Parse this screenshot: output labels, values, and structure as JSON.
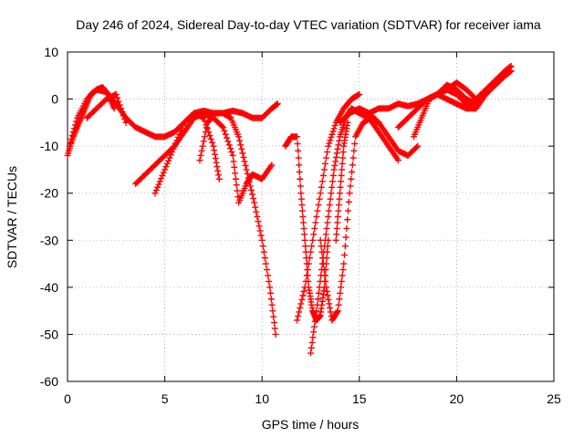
{
  "chart_data": {
    "type": "scatter",
    "title": "Day 246 of 2024, Sidereal Day-to-day VTEC variation (SDTVAR) for receiver iama",
    "xlabel": "GPS time / hours",
    "ylabel": "SDTVAR / TECUs",
    "xlim": [
      0,
      25
    ],
    "ylim": [
      -60,
      10
    ],
    "xticks": [
      0,
      5,
      10,
      15,
      20,
      25
    ],
    "yticks": [
      10,
      0,
      -10,
      -20,
      -30,
      -40,
      -50,
      -60
    ],
    "xtick_labels": [
      "0",
      "5",
      "10",
      "15",
      "20",
      "25"
    ],
    "ytick_labels": [
      "10",
      "0",
      "-10",
      "-20",
      "-30",
      "-40",
      "-50",
      "-60"
    ],
    "grid": true,
    "marker": "+",
    "color": "#ff0000",
    "series": [
      {
        "name": "track-1",
        "x": [
          0.0,
          0.3,
          0.6,
          0.9,
          1.2,
          1.5,
          1.8,
          2.1,
          2.4
        ],
        "y": [
          -12,
          -8,
          -5,
          -2,
          1,
          2,
          2.5,
          1,
          -2
        ]
      },
      {
        "name": "track-2",
        "x": [
          0.1,
          0.5,
          1.0,
          1.5,
          2.0,
          2.5,
          3.0,
          3.5,
          4.0,
          4.5,
          5.0,
          5.5,
          6.0,
          6.5,
          7.0,
          7.5,
          8.0,
          8.5,
          9.0,
          9.5,
          10.0,
          10.5,
          10.8
        ],
        "y": [
          -10,
          -4,
          0,
          2,
          1.5,
          -1,
          -4,
          -6,
          -7,
          -8,
          -8,
          -7,
          -5,
          -3,
          -2.5,
          -3,
          -3,
          -2.5,
          -3,
          -4,
          -4,
          -2,
          -1
        ]
      },
      {
        "name": "track-3",
        "x": [
          1.0,
          1.5,
          2.0,
          2.5,
          3.0
        ],
        "y": [
          -4,
          -2,
          0,
          1,
          -5
        ]
      },
      {
        "name": "track-4",
        "x": [
          3.5,
          4.0,
          4.5,
          5.0,
          5.5,
          6.0,
          6.5,
          7.0,
          7.5,
          8.0,
          8.5,
          8.8,
          9.2,
          9.5,
          10.0,
          10.5
        ],
        "y": [
          -18,
          -16,
          -14,
          -12,
          -10,
          -7,
          -4,
          -3,
          -4,
          -6,
          -12,
          -22,
          -18,
          -16,
          -17,
          -14
        ]
      },
      {
        "name": "track-5",
        "x": [
          4.5,
          5.0,
          5.5,
          6.0,
          6.5,
          7.0,
          7.5,
          7.8
        ],
        "y": [
          -20,
          -15,
          -10,
          -5,
          -3,
          -4,
          -10,
          -17
        ]
      },
      {
        "name": "track-6",
        "x": [
          6.8,
          7.2,
          7.6,
          8.0,
          8.4,
          8.8,
          9.2,
          9.6,
          10.0,
          10.4,
          10.7
        ],
        "y": [
          -13,
          -5,
          -3,
          -3,
          -4,
          -8,
          -15,
          -22,
          -30,
          -40,
          -50
        ]
      },
      {
        "name": "track-7",
        "x": [
          11.2,
          11.5,
          11.8,
          12.0,
          12.2,
          12.4,
          12.6,
          12.8,
          13.0,
          13.2,
          13.4
        ],
        "y": [
          -10,
          -8,
          -8,
          -20,
          -30,
          -40,
          -45,
          -47,
          -46,
          -40,
          -30
        ]
      },
      {
        "name": "track-8",
        "x": [
          11.8,
          12.2,
          12.6,
          13.0,
          13.4,
          13.8,
          14.2,
          14.6,
          15.0
        ],
        "y": [
          -47,
          -40,
          -30,
          -20,
          -10,
          -5,
          -2,
          0,
          1
        ]
      },
      {
        "name": "track-9",
        "x": [
          12.5,
          12.8,
          13.1,
          13.4,
          13.7,
          14.0,
          14.3,
          14.6,
          15.0,
          15.5,
          16.0,
          16.5,
          17.0
        ],
        "y": [
          -54,
          -45,
          -35,
          -25,
          -15,
          -8,
          -4,
          -2,
          -3,
          -4,
          -7,
          -10,
          -13
        ]
      },
      {
        "name": "track-10",
        "x": [
          13.0,
          13.3,
          13.6,
          13.9,
          14.2,
          14.5,
          14.8,
          15.2,
          15.6,
          16.0
        ],
        "y": [
          -30,
          -40,
          -47,
          -45,
          -35,
          -20,
          -8,
          -5,
          -4,
          -5
        ]
      },
      {
        "name": "track-11",
        "x": [
          13.8,
          14.0,
          14.2,
          14.4
        ],
        "y": [
          -30,
          -20,
          -10,
          -5
        ]
      },
      {
        "name": "track-12",
        "x": [
          14.0,
          14.5,
          15.0,
          15.5,
          16.0,
          16.5,
          17.0,
          17.5,
          18.0
        ],
        "y": [
          -5,
          -3,
          -2,
          -3,
          -5,
          -8,
          -11,
          -12,
          -10
        ]
      },
      {
        "name": "track-13",
        "x": [
          15.5,
          16.0,
          16.5,
          17.0,
          17.5,
          18.0,
          18.5,
          19.0,
          19.5,
          20.0,
          20.5,
          21.0
        ],
        "y": [
          -3,
          -2,
          -2,
          -1,
          -1.5,
          -1,
          0,
          1,
          2,
          1,
          -1,
          -2
        ]
      },
      {
        "name": "track-14",
        "x": [
          17.0,
          17.5,
          18.0,
          18.5,
          19.0,
          19.5,
          20.0,
          20.5,
          21.0,
          21.5,
          22.0,
          22.5,
          22.8
        ],
        "y": [
          -6,
          -4,
          -2,
          0,
          1,
          3,
          2,
          0,
          -1,
          1,
          3,
          5,
          6
        ]
      },
      {
        "name": "track-15",
        "x": [
          17.8,
          18.2,
          18.6,
          19.0,
          19.5,
          20.0,
          20.5,
          21.0,
          21.5,
          22.0,
          22.5,
          22.8
        ],
        "y": [
          -8,
          -4,
          0,
          1,
          0,
          -1,
          -2,
          -2,
          1,
          4,
          6,
          7
        ]
      },
      {
        "name": "track-16",
        "x": [
          19.0,
          19.5,
          20.0,
          20.5,
          21.0,
          21.5,
          22.0,
          22.5
        ],
        "y": [
          1,
          2,
          3.5,
          2,
          0,
          2,
          4,
          6
        ]
      }
    ]
  }
}
